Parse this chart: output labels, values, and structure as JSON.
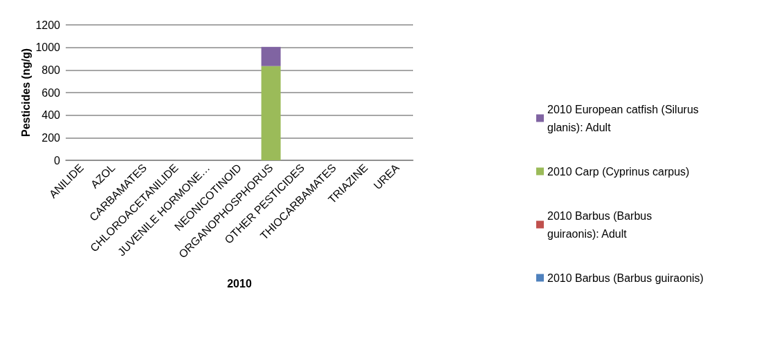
{
  "chart_data": {
    "type": "bar",
    "stacked": true,
    "xlabel": "2010",
    "ylabel": "Pesticides (ng/g)",
    "categories": [
      "ANILIDE",
      "AZOL",
      "CARBAMATES",
      "CHLOROACETANILIDE",
      "JUVENILE HORMONE…",
      "NEONICOTINOID",
      "ORGANOPHOSPHORUS",
      "OTHER PESTICIDES",
      "THIOCARBAMATES",
      "TRIAZINE",
      "UREA"
    ],
    "series": [
      {
        "name": "2010 Barbus (Barbus guiraonis)",
        "color": "#4f81bd",
        "values": [
          0,
          0,
          0,
          0,
          0,
          0,
          0,
          0,
          0,
          0,
          0
        ]
      },
      {
        "name": "2010 Barbus (Barbus guiraonis): Adult",
        "color": "#c0504d",
        "values": [
          0,
          0,
          0,
          0,
          0,
          0,
          0,
          0,
          0,
          0,
          0
        ]
      },
      {
        "name": "2010 Carp (Cyprinus carpus)",
        "color": "#9bbb59",
        "values": [
          0,
          0,
          0,
          0,
          0,
          0,
          835,
          0,
          0,
          0,
          0
        ]
      },
      {
        "name": "2010 European catfish (Silurus glanis): Adult",
        "color": "#8064a2",
        "values": [
          0,
          0,
          0,
          0,
          0,
          0,
          170,
          0,
          0,
          0,
          0
        ]
      }
    ],
    "ylim": [
      0,
      1200
    ],
    "yticks": [
      0,
      200,
      400,
      600,
      800,
      1000,
      1200
    ],
    "grid": "y",
    "legend": "right"
  }
}
